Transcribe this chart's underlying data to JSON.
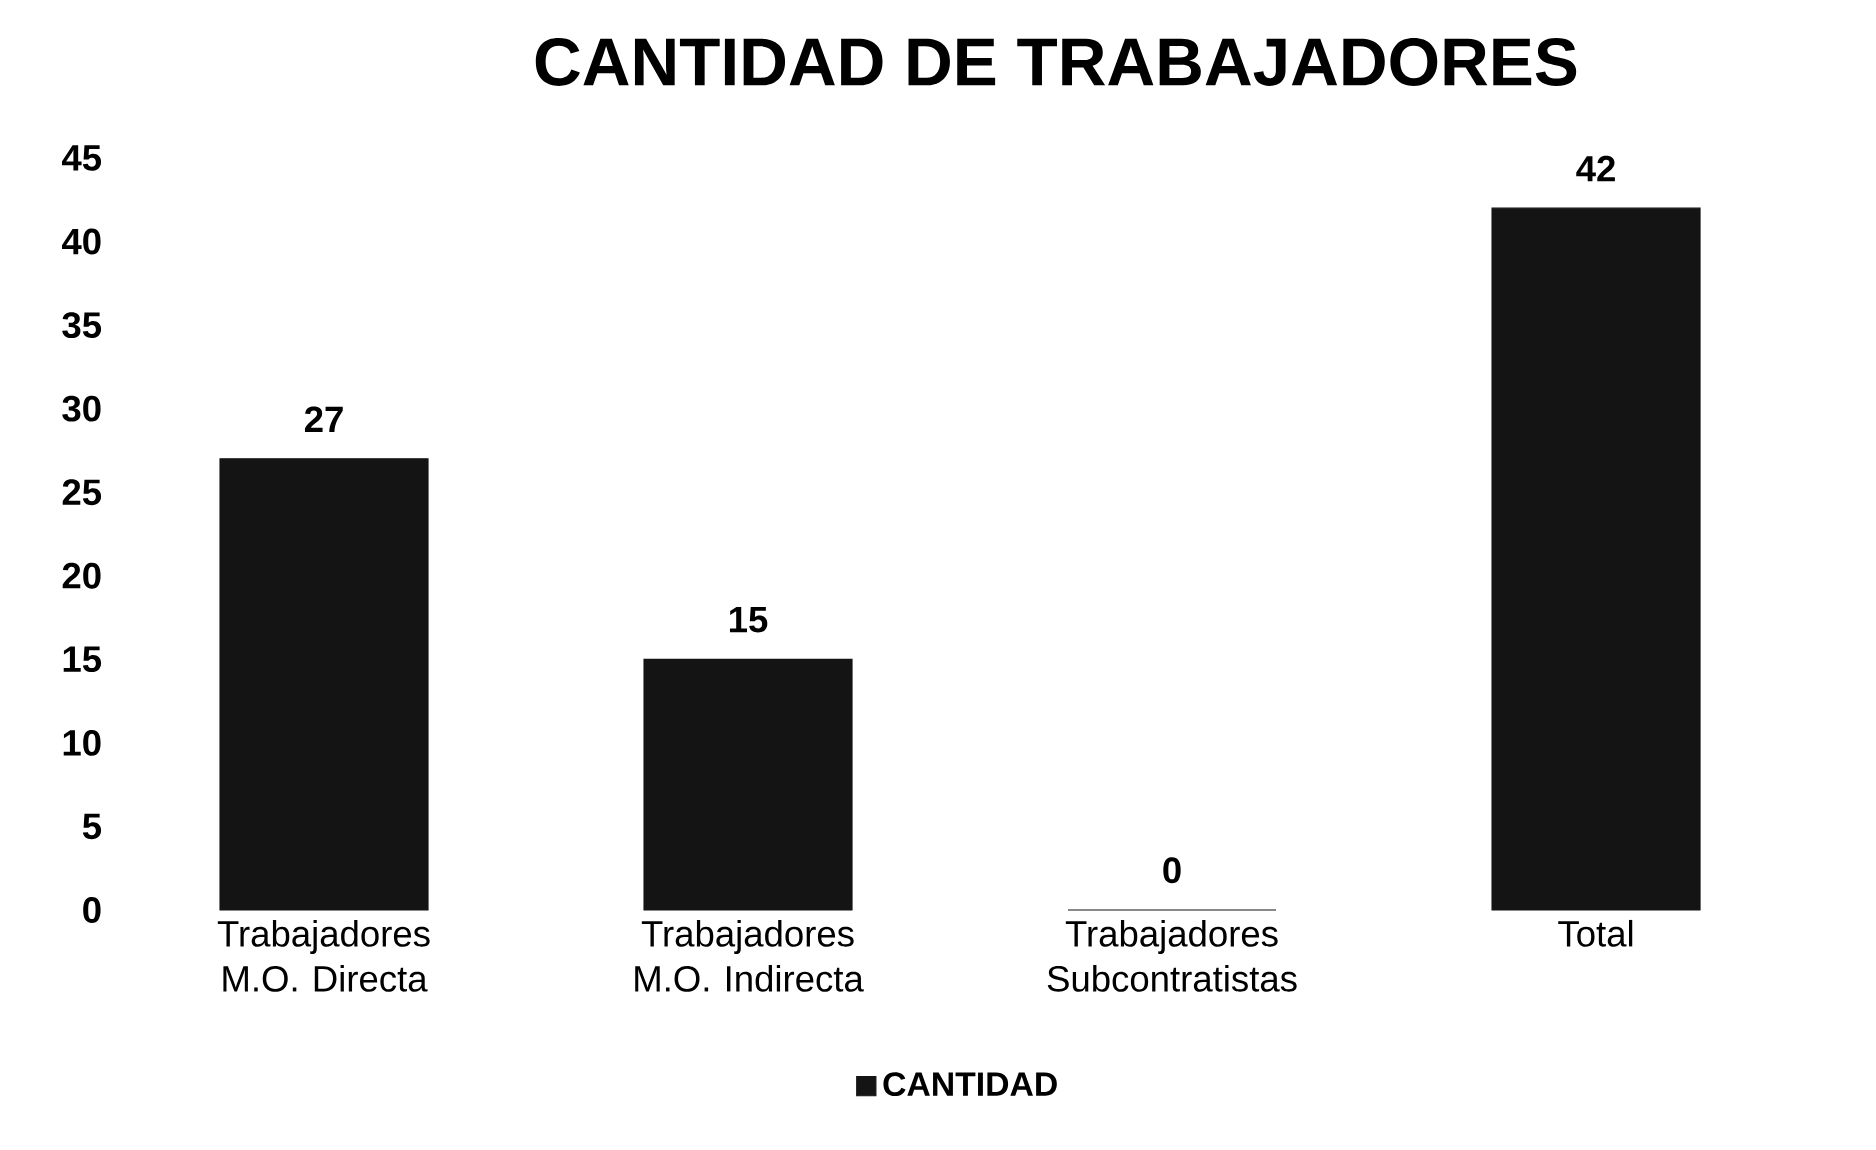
{
  "chart_data": {
    "type": "bar",
    "title": "CANTIDAD DE TRABAJADORES",
    "categories": [
      "Trabajadores M.O. Directa",
      "Trabajadores M.O. Indirecta",
      "Trabajadores Subcontratistas",
      "Total"
    ],
    "series": [
      {
        "name": "CANTIDAD",
        "color": "#141414",
        "values": [
          27,
          15,
          0,
          42
        ]
      }
    ],
    "ylim": [
      0,
      45
    ],
    "yticks": [
      0,
      5,
      10,
      15,
      20,
      25,
      30,
      35,
      40,
      45
    ],
    "data_labels": true,
    "legend": "bottom",
    "grid": false
  }
}
